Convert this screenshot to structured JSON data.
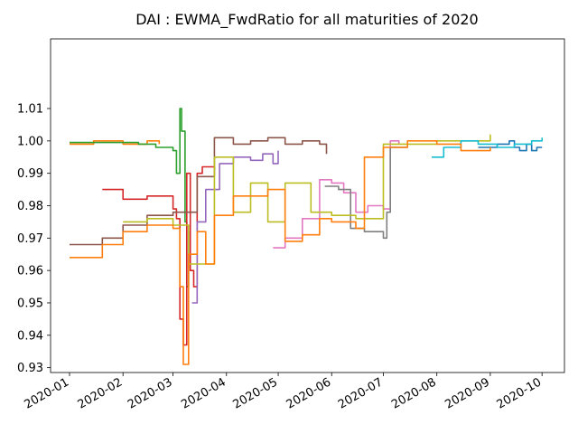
{
  "chart_data": {
    "type": "line",
    "title": "DAI : EWMA_FwdRatio for all maturities of 2020",
    "xlabel": "",
    "ylabel": "",
    "x_ticks": [
      "2020-01",
      "2020-02",
      "2020-03",
      "2020-04",
      "2020-05",
      "2020-06",
      "2020-07",
      "2020-08",
      "2020-09",
      "2020-10"
    ],
    "y_ticks": [
      "0.93",
      "0.94",
      "0.95",
      "0.96",
      "0.97",
      "0.98",
      "0.99",
      "1.00",
      "1.01"
    ],
    "xlim": [
      "2019-12-21",
      "2020-10-14"
    ],
    "ylim": [
      0.9285,
      1.0315
    ],
    "grid": false,
    "series": [
      {
        "color": "#1f77b4",
        "points": [
          [
            "2020-08-25",
            0.998
          ],
          [
            "2020-09-05",
            0.999
          ],
          [
            "2020-09-12",
            1.0
          ],
          [
            "2020-09-15",
            0.998
          ],
          [
            "2020-09-18",
            0.997
          ],
          [
            "2020-09-22",
            0.999
          ],
          [
            "2020-09-25",
            0.997
          ],
          [
            "2020-09-28",
            0.998
          ],
          [
            "2020-10-01",
            0.998
          ]
        ]
      },
      {
        "color": "#ff7f0e",
        "points": [
          [
            "2020-01-01",
            0.999
          ],
          [
            "2020-01-15",
            1.0
          ],
          [
            "2020-02-01",
            0.999
          ],
          [
            "2020-02-15",
            1.0
          ],
          [
            "2020-02-22",
            0.999
          ]
        ]
      },
      {
        "color": "#2ca02c",
        "points": [
          [
            "2020-01-01",
            0.9995
          ],
          [
            "2020-01-20",
            0.9995
          ],
          [
            "2020-02-10",
            0.999
          ],
          [
            "2020-02-20",
            0.998
          ],
          [
            "2020-03-01",
            0.997
          ],
          [
            "2020-03-03",
            0.99
          ],
          [
            "2020-03-05",
            1.01
          ],
          [
            "2020-03-06",
            1.003
          ],
          [
            "2020-03-08",
            0.975
          ],
          [
            "2020-03-09",
            0.955
          ],
          [
            "2020-03-10",
            0.972
          ]
        ]
      },
      {
        "color": "#d62728",
        "points": [
          [
            "2020-01-20",
            0.985
          ],
          [
            "2020-02-01",
            0.982
          ],
          [
            "2020-02-15",
            0.983
          ],
          [
            "2020-03-01",
            0.979
          ],
          [
            "2020-03-03",
            0.976
          ],
          [
            "2020-03-05",
            0.945
          ],
          [
            "2020-03-07",
            0.937
          ],
          [
            "2020-03-09",
            0.99
          ],
          [
            "2020-03-11",
            0.96
          ],
          [
            "2020-03-13",
            0.955
          ],
          [
            "2020-03-15",
            0.99
          ],
          [
            "2020-03-18",
            0.992
          ],
          [
            "2020-03-25",
            0.991
          ]
        ]
      },
      {
        "color": "#9467bd",
        "points": [
          [
            "2020-03-12",
            0.95
          ],
          [
            "2020-03-15",
            0.975
          ],
          [
            "2020-03-20",
            0.985
          ],
          [
            "2020-03-28",
            0.993
          ],
          [
            "2020-04-05",
            0.995
          ],
          [
            "2020-04-15",
            0.994
          ],
          [
            "2020-04-22",
            0.996
          ],
          [
            "2020-04-28",
            0.993
          ],
          [
            "2020-05-01",
            0.997
          ]
        ]
      },
      {
        "color": "#8c564b",
        "points": [
          [
            "2020-01-01",
            0.968
          ],
          [
            "2020-01-20",
            0.97
          ],
          [
            "2020-02-01",
            0.974
          ],
          [
            "2020-02-15",
            0.977
          ],
          [
            "2020-03-01",
            0.978
          ],
          [
            "2020-03-15",
            0.989
          ],
          [
            "2020-03-25",
            1.001
          ],
          [
            "2020-04-05",
            0.999
          ],
          [
            "2020-04-15",
            1.0
          ],
          [
            "2020-04-25",
            1.001
          ],
          [
            "2020-05-05",
            0.999
          ],
          [
            "2020-05-15",
            1.0
          ],
          [
            "2020-05-25",
            0.999
          ],
          [
            "2020-05-29",
            0.996
          ]
        ]
      },
      {
        "color": "#e377c2",
        "points": [
          [
            "2020-04-28",
            0.967
          ],
          [
            "2020-05-05",
            0.97
          ],
          [
            "2020-05-15",
            0.976
          ],
          [
            "2020-05-25",
            0.988
          ],
          [
            "2020-06-01",
            0.987
          ],
          [
            "2020-06-08",
            0.984
          ],
          [
            "2020-06-15",
            0.978
          ],
          [
            "2020-06-22",
            0.98
          ],
          [
            "2020-07-01",
            0.979
          ],
          [
            "2020-07-05",
            1.0
          ],
          [
            "2020-07-10",
            0.999
          ]
        ]
      },
      {
        "color": "#7f7f7f",
        "points": [
          [
            "2020-05-28",
            0.986
          ],
          [
            "2020-06-05",
            0.985
          ],
          [
            "2020-06-12",
            0.973
          ],
          [
            "2020-06-20",
            0.972
          ],
          [
            "2020-07-01",
            0.97
          ],
          [
            "2020-07-03",
            0.978
          ],
          [
            "2020-07-05",
            0.998
          ],
          [
            "2020-07-15",
            0.998
          ]
        ]
      },
      {
        "color": "#bcbd22",
        "points": [
          [
            "2020-02-01",
            0.975
          ],
          [
            "2020-02-15",
            0.976
          ],
          [
            "2020-03-01",
            0.974
          ],
          [
            "2020-03-10",
            0.962
          ],
          [
            "2020-03-25",
            0.995
          ],
          [
            "2020-04-05",
            0.978
          ],
          [
            "2020-04-15",
            0.987
          ],
          [
            "2020-04-25",
            0.975
          ],
          [
            "2020-05-05",
            0.987
          ],
          [
            "2020-05-20",
            0.978
          ],
          [
            "2020-06-01",
            0.977
          ],
          [
            "2020-06-15",
            0.976
          ],
          [
            "2020-07-01",
            0.999
          ],
          [
            "2020-07-15",
            0.999
          ],
          [
            "2020-08-01",
            1.0
          ],
          [
            "2020-08-15",
            1.0
          ],
          [
            "2020-09-01",
            1.002
          ]
        ]
      },
      {
        "color": "#17becf",
        "points": [
          [
            "2020-07-29",
            0.995
          ],
          [
            "2020-08-05",
            0.998
          ],
          [
            "2020-08-15",
            1.0
          ],
          [
            "2020-08-25",
            0.999
          ],
          [
            "2020-09-05",
            0.998
          ],
          [
            "2020-09-15",
            0.999
          ],
          [
            "2020-09-25",
            1.0
          ],
          [
            "2020-10-01",
            1.001
          ]
        ]
      },
      {
        "color": "#ff7f0e",
        "points": [
          [
            "2020-01-01",
            0.964
          ],
          [
            "2020-01-10",
            0.964
          ],
          [
            "2020-01-20",
            0.968
          ],
          [
            "2020-02-01",
            0.972
          ],
          [
            "2020-02-15",
            0.974
          ],
          [
            "2020-03-01",
            0.973
          ],
          [
            "2020-03-05",
            0.955
          ],
          [
            "2020-03-07",
            0.931
          ],
          [
            "2020-03-10",
            0.965
          ],
          [
            "2020-03-15",
            0.972
          ],
          [
            "2020-03-20",
            0.962
          ],
          [
            "2020-03-25",
            0.977
          ],
          [
            "2020-04-05",
            0.983
          ],
          [
            "2020-04-15",
            0.983
          ],
          [
            "2020-04-25",
            0.985
          ],
          [
            "2020-05-05",
            0.969
          ],
          [
            "2020-05-15",
            0.971
          ],
          [
            "2020-05-25",
            0.976
          ],
          [
            "2020-06-01",
            0.975
          ],
          [
            "2020-06-15",
            0.973
          ],
          [
            "2020-06-20",
            0.995
          ],
          [
            "2020-07-01",
            0.998
          ],
          [
            "2020-07-15",
            1.0
          ],
          [
            "2020-08-01",
            0.999
          ],
          [
            "2020-08-15",
            0.997
          ],
          [
            "2020-09-01",
            0.998
          ]
        ]
      }
    ]
  }
}
